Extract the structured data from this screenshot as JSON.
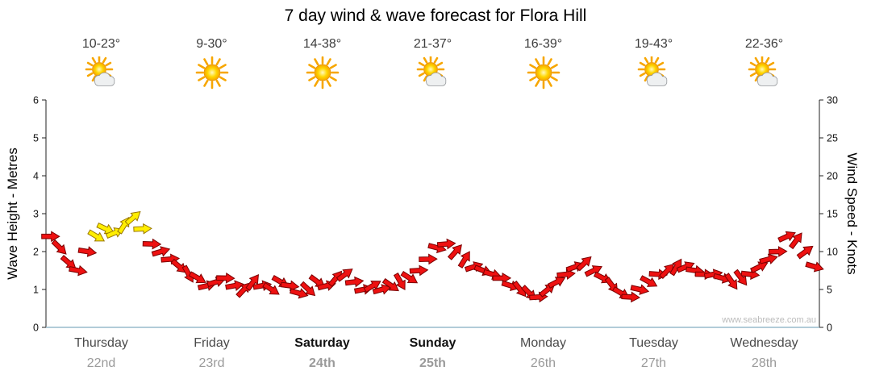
{
  "title": "7 day wind & wave forecast for Flora Hill",
  "watermark": "www.seabreeze.com.au",
  "axes": {
    "left_label": "Wave Height - Metres",
    "right_label": "Wind Speed - Knots"
  },
  "days": [
    {
      "label": "Thursday",
      "date": "22nd",
      "temp": "10-23°",
      "icon": "sun-cloud",
      "bold": false
    },
    {
      "label": "Friday",
      "date": "23rd",
      "temp": "9-30°",
      "icon": "sun",
      "bold": false
    },
    {
      "label": "Saturday",
      "date": "24th",
      "temp": "14-38°",
      "icon": "sun",
      "bold": true
    },
    {
      "label": "Sunday",
      "date": "25th",
      "temp": "21-37°",
      "icon": "sun-cloud",
      "bold": true
    },
    {
      "label": "Monday",
      "date": "26th",
      "temp": "16-39°",
      "icon": "sun",
      "bold": false
    },
    {
      "label": "Tuesday",
      "date": "27th",
      "temp": "19-43°",
      "icon": "sun-cloud",
      "bold": false
    },
    {
      "label": "Wednesday",
      "date": "28th",
      "temp": "22-36°",
      "icon": "sun-cloud",
      "bold": false
    }
  ],
  "chart_data": {
    "type": "scatter",
    "title": "7 day wind & wave forecast for Flora Hill",
    "xlabel": "",
    "ylabel_left": "Wave Height - Metres",
    "ylabel_right": "Wind Speed - Knots",
    "ylim_left": [
      0,
      6
    ],
    "ylim_right": [
      0,
      30
    ],
    "yticks_left": [
      0,
      1,
      2,
      3,
      4,
      5,
      6
    ],
    "yticks_right": [
      0,
      5,
      10,
      15,
      20,
      25,
      30
    ],
    "grid": false,
    "legend": "none",
    "x_categories": [
      "Thursday 22nd",
      "Friday 23rd",
      "Saturday 24th",
      "Sunday 25th",
      "Monday 26th",
      "Tuesday 27th",
      "Wednesday 28th"
    ],
    "series": [
      {
        "name": "wind-speed-knots",
        "unit": "knots",
        "points_per_day": 12,
        "values": [
          12,
          10.5,
          8.5,
          7.5,
          10,
          12,
          13,
          12.5,
          13.5,
          14.5,
          13,
          11,
          10,
          9,
          8,
          7,
          6.5,
          5.5,
          6,
          6.5,
          5.5,
          5,
          6,
          5.5,
          5,
          6,
          5.5,
          4.5,
          5,
          6,
          5.5,
          6.5,
          7,
          6,
          5,
          5.5,
          5,
          5.5,
          6,
          6.5,
          7.5,
          9,
          10.5,
          11,
          10,
          9,
          8,
          7.5,
          7,
          6.5,
          5.5,
          5,
          4.5,
          4,
          5,
          6,
          7,
          8,
          8.5,
          7.5,
          6.5,
          5.5,
          4.5,
          4,
          5,
          6,
          7,
          7.5,
          8,
          8,
          7.5,
          7,
          7,
          6.5,
          6,
          6.5,
          7,
          8,
          9,
          10,
          12,
          11.5,
          10,
          8
        ],
        "yellow_point_indices": [
          5,
          6,
          7,
          8,
          9,
          10
        ]
      }
    ],
    "colors": {
      "arrow_red": "#ee1111",
      "arrow_red_outline": "#7a0000",
      "arrow_yellow": "#ffee00",
      "arrow_yellow_outline": "#997700",
      "baseline": "#99bbcc",
      "axis": "#222222"
    }
  }
}
